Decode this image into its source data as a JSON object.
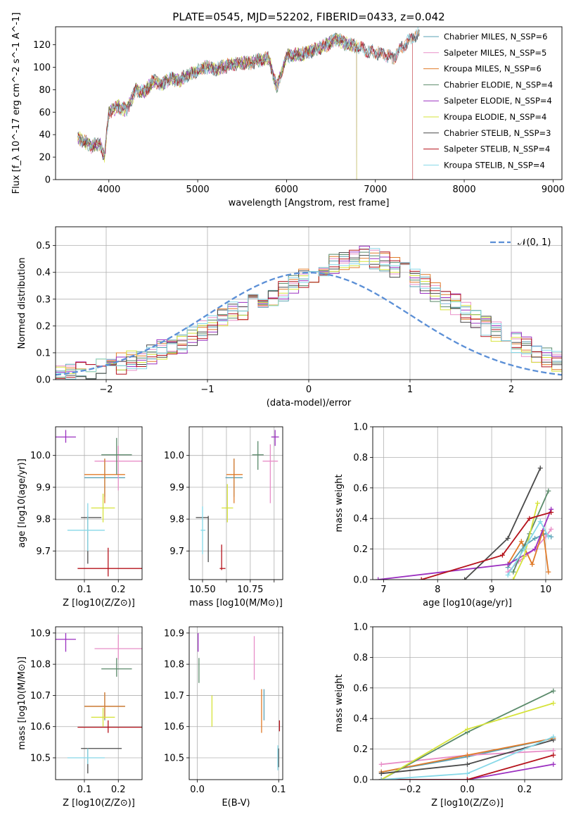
{
  "figure_title": "PLATE=0545, MJD=52202, FIBERID=0433, z=0.042",
  "chart_data": [
    {
      "id": "spectrum",
      "type": "line",
      "xlabel": "wavelength [Angstrom, rest frame]",
      "ylabel": "Flux [f_λ 10^-17 erg cm^-2 s^-1 A^-1]",
      "xlim": [
        3400,
        9100
      ],
      "ylim": [
        0,
        136
      ],
      "xticks": [
        4000,
        5000,
        6000,
        7000,
        8000,
        9000
      ],
      "yticks": [
        0,
        20,
        40,
        60,
        80,
        100,
        120
      ],
      "grid": false,
      "legend_position": "right",
      "legend": [
        {
          "label": "Chabrier MILES, N_SSP=6",
          "color": "#5aa0b4"
        },
        {
          "label": "Salpeter MILES, N_SSP=5",
          "color": "#e88fc8"
        },
        {
          "label": "Kroupa MILES, N_SSP=6",
          "color": "#e07b2a"
        },
        {
          "label": "Chabrier ELODIE, N_SSP=4",
          "color": "#5a8a6a"
        },
        {
          "label": "Salpeter ELODIE, N_SSP=4",
          "color": "#9b30c0"
        },
        {
          "label": "Kroupa ELODIE, N_SSP=4",
          "color": "#d6e33a"
        },
        {
          "label": "Chabrier STELIB, N_SSP=3",
          "color": "#4a4a4a"
        },
        {
          "label": "Salpeter STELIB, N_SSP=4",
          "color": "#b5121b"
        },
        {
          "label": "Kroupa STELIB, N_SSP=4",
          "color": "#86d8e8"
        }
      ],
      "spectrum_anchor_points": {
        "wavelength": [
          3650,
          3700,
          3800,
          3900,
          3950,
          4000,
          4100,
          4200,
          4300,
          4400,
          4500,
          4600,
          4700,
          4800,
          4860,
          4950,
          5100,
          5200,
          5400,
          5600,
          5800,
          5890,
          6000,
          6200,
          6400,
          6560,
          6700,
          6800,
          6900,
          7000,
          7100,
          7200,
          7300,
          7400,
          7500
        ],
        "flux": [
          38,
          35,
          30,
          32,
          20,
          60,
          65,
          62,
          80,
          78,
          88,
          85,
          90,
          88,
          92,
          95,
          100,
          98,
          103,
          104,
          108,
          82,
          110,
          112,
          118,
          125,
          120,
          118,
          115,
          113,
          112,
          108,
          118,
          125,
          130
        ]
      }
    },
    {
      "id": "residuals",
      "type": "histogram",
      "xlabel": "(data-model)/error",
      "ylabel": "Normed distribution",
      "xlim": [
        -2.5,
        2.5
      ],
      "ylim": [
        0,
        0.57
      ],
      "xticks": [
        -2,
        -1,
        0,
        1,
        2
      ],
      "yticks": [
        0.0,
        0.1,
        0.2,
        0.3,
        0.4,
        0.5
      ],
      "grid": true,
      "legend_label": "𝒩(0, 1)",
      "legend_position": "top-right",
      "reference_curve": {
        "name": "𝒩(0, 1)",
        "mean": 0,
        "sigma": 1,
        "color": "#5b8fd6"
      },
      "bin_edges_start": -2.5,
      "bin_width": 0.1,
      "base_histogram": [
        0.02,
        0.025,
        0.03,
        0.035,
        0.045,
        0.055,
        0.06,
        0.07,
        0.08,
        0.09,
        0.11,
        0.12,
        0.13,
        0.16,
        0.18,
        0.2,
        0.23,
        0.25,
        0.26,
        0.28,
        0.3,
        0.31,
        0.33,
        0.36,
        0.38,
        0.4,
        0.41,
        0.43,
        0.44,
        0.45,
        0.46,
        0.45,
        0.44,
        0.42,
        0.4,
        0.38,
        0.36,
        0.33,
        0.3,
        0.28,
        0.25,
        0.22,
        0.2,
        0.18,
        0.16,
        0.14,
        0.12,
        0.1,
        0.08,
        0.07
      ]
    },
    {
      "id": "age_vs_Z",
      "type": "scatter",
      "xlabel": "Z [log10(Z/Z⊙)]",
      "ylabel": "age  [log10(age/yr)]",
      "xlim": [
        0.015,
        0.27
      ],
      "ylim": [
        9.61,
        10.09
      ],
      "xticks": [
        0.1,
        0.2
      ],
      "yticks": [
        9.7,
        9.8,
        9.9,
        10.0
      ],
      "grid": true,
      "points": [
        {
          "color": "#5aa0b4",
          "x": 0.16,
          "y": 9.93,
          "xerr": [
            0.1,
            0.22
          ],
          "yerr": [
            9.87,
            9.99
          ]
        },
        {
          "color": "#e88fc8",
          "x": 0.2,
          "y": 9.982,
          "xerr": [
            0.13,
            0.27
          ],
          "yerr": [
            9.89,
            10.03
          ]
        },
        {
          "color": "#e07b2a",
          "x": 0.16,
          "y": 9.94,
          "xerr": [
            0.1,
            0.22
          ],
          "yerr": [
            9.85,
            9.99
          ]
        },
        {
          "color": "#5a8a6a",
          "x": 0.195,
          "y": 10.002,
          "xerr": [
            0.15,
            0.24
          ],
          "yerr": [
            9.94,
            10.055
          ]
        },
        {
          "color": "#9b30c0",
          "x": 0.045,
          "y": 10.058,
          "xerr": [
            0.015,
            0.075
          ],
          "yerr": [
            10.04,
            10.08
          ]
        },
        {
          "color": "#d6e33a",
          "x": 0.155,
          "y": 9.835,
          "xerr": [
            0.12,
            0.19
          ],
          "yerr": [
            9.79,
            9.88
          ]
        },
        {
          "color": "#4a4a4a",
          "x": 0.11,
          "y": 9.805,
          "xerr": [
            0.09,
            0.15
          ],
          "yerr": [
            9.66,
            9.81
          ]
        },
        {
          "color": "#b5121b",
          "x": 0.17,
          "y": 9.645,
          "xerr": [
            0.08,
            0.275
          ],
          "yerr": [
            9.62,
            9.71
          ]
        },
        {
          "color": "#86d8e8",
          "x": 0.11,
          "y": 9.765,
          "xerr": [
            0.05,
            0.16
          ],
          "yerr": [
            9.7,
            9.85
          ]
        }
      ]
    },
    {
      "id": "age_vs_mass",
      "type": "scatter",
      "xlabel": "mass [log10(M/M⊙)]",
      "ylabel": "",
      "xlim": [
        10.43,
        10.92
      ],
      "ylim": [
        9.61,
        10.09
      ],
      "xticks": [
        10.5,
        10.625,
        10.75,
        10.875
      ],
      "ytick_labels": [
        "9.7",
        "9.8",
        "9.9",
        "10.0"
      ],
      "xtick_labels": [
        "10.50",
        "",
        "10.75",
        ""
      ],
      "xtick_marks": [
        10.5,
        10.625,
        10.75,
        10.875
      ],
      "yticks": [
        9.7,
        9.8,
        9.9,
        10.0
      ],
      "grid": true,
      "points": [
        {
          "color": "#5aa0b4",
          "x": 10.665,
          "y": 9.93,
          "xerr": [
            10.62,
            10.71
          ],
          "yerr": [
            9.87,
            9.99
          ]
        },
        {
          "color": "#e88fc8",
          "x": 10.855,
          "y": 9.982,
          "xerr": [
            10.815,
            10.895
          ],
          "yerr": [
            9.85,
            10.035
          ]
        },
        {
          "color": "#e07b2a",
          "x": 10.665,
          "y": 9.94,
          "xerr": [
            10.625,
            10.71
          ],
          "yerr": [
            9.85,
            9.99
          ]
        },
        {
          "color": "#5a8a6a",
          "x": 10.79,
          "y": 10.002,
          "xerr": [
            10.76,
            10.82
          ],
          "yerr": [
            9.955,
            10.045
          ]
        },
        {
          "color": "#9b30c0",
          "x": 10.88,
          "y": 10.058,
          "xerr": [
            10.86,
            10.9
          ],
          "yerr": [
            10.03,
            10.08
          ]
        },
        {
          "color": "#d6e33a",
          "x": 10.63,
          "y": 9.835,
          "xerr": [
            10.6,
            10.66
          ],
          "yerr": [
            9.79,
            9.91
          ]
        },
        {
          "color": "#4a4a4a",
          "x": 10.53,
          "y": 9.805,
          "xerr": [
            10.465,
            10.53
          ],
          "yerr": [
            9.665,
            9.81
          ]
        },
        {
          "color": "#b5121b",
          "x": 10.6,
          "y": 9.645,
          "xerr": [
            10.59,
            10.62
          ],
          "yerr": [
            9.64,
            9.72
          ]
        },
        {
          "color": "#86d8e8",
          "x": 10.5,
          "y": 9.765,
          "xerr": [
            10.49,
            10.515
          ],
          "yerr": [
            9.69,
            9.84
          ]
        }
      ]
    },
    {
      "id": "massweight_vs_age",
      "type": "line",
      "xlabel": "age  [log10(age/yr)]",
      "ylabel": "mass weight",
      "xlim": [
        6.8,
        10.3
      ],
      "ylim": [
        0,
        1.0
      ],
      "xticks": [
        7,
        8,
        9,
        10
      ],
      "yticks": [
        0.0,
        0.2,
        0.4,
        0.6,
        0.8,
        1.0
      ],
      "grid": true,
      "series": [
        {
          "color": "#5aa0b4",
          "x": [
            9.3,
            9.6,
            9.8,
            10.0,
            10.1
          ],
          "y": [
            0.08,
            0.22,
            0.27,
            0.3,
            0.28
          ]
        },
        {
          "color": "#e88fc8",
          "x": [
            9.3,
            9.5,
            9.8,
            10.0,
            10.1
          ],
          "y": [
            0.05,
            0.12,
            0.2,
            0.28,
            0.33
          ]
        },
        {
          "color": "#e07b2a",
          "x": [
            9.3,
            9.55,
            9.75,
            9.95,
            10.05
          ],
          "y": [
            0.1,
            0.25,
            0.1,
            0.32,
            0.05
          ]
        },
        {
          "color": "#5a8a6a",
          "x": [
            9.4,
            9.7,
            10.05
          ],
          "y": [
            0.05,
            0.3,
            0.58
          ]
        },
        {
          "color": "#9b30c0",
          "x": [
            6.9,
            9.3,
            9.8,
            10.1
          ],
          "y": [
            0.0,
            0.1,
            0.2,
            0.46
          ]
        },
        {
          "color": "#d6e33a",
          "x": [
            9.4,
            9.6,
            9.85
          ],
          "y": [
            0.0,
            0.15,
            0.5
          ]
        },
        {
          "color": "#4a4a4a",
          "x": [
            8.5,
            9.3,
            9.9
          ],
          "y": [
            0.0,
            0.27,
            0.73
          ]
        },
        {
          "color": "#b5121b",
          "x": [
            7.7,
            9.2,
            9.7,
            10.1
          ],
          "y": [
            0.0,
            0.16,
            0.4,
            0.44
          ]
        },
        {
          "color": "#86d8e8",
          "x": [
            9.3,
            9.6,
            9.9,
            10.05
          ],
          "y": [
            0.03,
            0.2,
            0.38,
            0.28
          ]
        }
      ]
    },
    {
      "id": "mass_vs_Z",
      "type": "scatter",
      "xlabel": "Z [log10(Z/Z⊙)]",
      "ylabel": "mass [log10(M/M⊙)]",
      "xlim": [
        0.015,
        0.27
      ],
      "ylim": [
        10.43,
        10.92
      ],
      "xticks": [
        0.1,
        0.2
      ],
      "yticks": [
        10.5,
        10.6,
        10.7,
        10.8,
        10.9
      ],
      "grid": true,
      "points": [
        {
          "color": "#5aa0b4",
          "x": 0.16,
          "y": 10.665,
          "xerr": [
            0.1,
            0.22
          ],
          "yerr": [
            10.62,
            10.71
          ]
        },
        {
          "color": "#e88fc8",
          "x": 0.2,
          "y": 10.85,
          "xerr": [
            0.13,
            0.27
          ],
          "yerr": [
            10.815,
            10.895
          ]
        },
        {
          "color": "#e07b2a",
          "x": 0.16,
          "y": 10.665,
          "xerr": [
            0.1,
            0.22
          ],
          "yerr": [
            10.625,
            10.71
          ]
        },
        {
          "color": "#5a8a6a",
          "x": 0.195,
          "y": 10.785,
          "xerr": [
            0.15,
            0.24
          ],
          "yerr": [
            10.76,
            10.82
          ]
        },
        {
          "color": "#9b30c0",
          "x": 0.045,
          "y": 10.88,
          "xerr": [
            0.015,
            0.075
          ],
          "yerr": [
            10.84,
            10.9
          ]
        },
        {
          "color": "#d6e33a",
          "x": 0.155,
          "y": 10.63,
          "xerr": [
            0.12,
            0.19
          ],
          "yerr": [
            10.6,
            10.66
          ]
        },
        {
          "color": "#4a4a4a",
          "x": 0.11,
          "y": 10.53,
          "xerr": [
            0.09,
            0.21
          ],
          "yerr": [
            10.45,
            10.53
          ]
        },
        {
          "color": "#b5121b",
          "x": 0.17,
          "y": 10.598,
          "xerr": [
            0.08,
            0.275
          ],
          "yerr": [
            10.58,
            10.62
          ]
        },
        {
          "color": "#86d8e8",
          "x": 0.11,
          "y": 10.5,
          "xerr": [
            0.05,
            0.16
          ],
          "yerr": [
            10.48,
            10.53
          ]
        }
      ]
    },
    {
      "id": "mass_vs_ebv",
      "type": "scatter",
      "xlabel": "E(B-V)",
      "ylabel": "",
      "xlim": [
        -0.01,
        0.105
      ],
      "ylim": [
        10.43,
        10.92
      ],
      "xticks": [
        0.0,
        0.1
      ],
      "yticks": [
        10.5,
        10.6,
        10.7,
        10.8,
        10.9
      ],
      "grid": true,
      "points": [
        {
          "color": "#5aa0b4",
          "x": 0.082,
          "y": 10.665,
          "yerr": [
            10.62,
            10.72
          ]
        },
        {
          "color": "#e88fc8",
          "x": 0.07,
          "y": 10.82,
          "yerr": [
            10.75,
            10.89
          ]
        },
        {
          "color": "#e07b2a",
          "x": 0.079,
          "y": 10.65,
          "yerr": [
            10.58,
            10.72
          ]
        },
        {
          "color": "#5a8a6a",
          "x": 0.002,
          "y": 10.78,
          "yerr": [
            10.74,
            10.82
          ]
        },
        {
          "color": "#9b30c0",
          "x": 0.001,
          "y": 10.87,
          "yerr": [
            10.84,
            10.9
          ]
        },
        {
          "color": "#d6e33a",
          "x": 0.018,
          "y": 10.65,
          "yerr": [
            10.6,
            10.7
          ]
        },
        {
          "color": "#4a4a4a",
          "x": 0.1,
          "y": 10.5,
          "yerr": [
            10.47,
            10.53
          ]
        },
        {
          "color": "#b5121b",
          "x": 0.101,
          "y": 10.6,
          "yerr": [
            10.585,
            10.62
          ]
        },
        {
          "color": "#86d8e8",
          "x": 0.099,
          "y": 10.5,
          "yerr": [
            10.46,
            10.54
          ]
        }
      ]
    },
    {
      "id": "massweight_vs_Z",
      "type": "line",
      "xlabel": "Z [log10(Z/Z⊙)]",
      "ylabel": "mass weight",
      "xlim": [
        -0.33,
        0.33
      ],
      "ylim": [
        0,
        1.0
      ],
      "xticks": [
        -0.2,
        0.0,
        0.2
      ],
      "yticks": [
        0.0,
        0.2,
        0.4,
        0.6,
        0.8,
        1.0
      ],
      "grid": true,
      "series": [
        {
          "color": "#5aa0b4",
          "x": [
            -0.3,
            0.0,
            0.3
          ],
          "y": [
            0.05,
            0.15,
            0.27
          ]
        },
        {
          "color": "#e88fc8",
          "x": [
            -0.3,
            0.0,
            0.3
          ],
          "y": [
            0.1,
            0.16,
            0.19
          ]
        },
        {
          "color": "#e07b2a",
          "x": [
            -0.3,
            0.0,
            0.3
          ],
          "y": [
            0.05,
            0.16,
            0.27
          ]
        },
        {
          "color": "#5a8a6a",
          "x": [
            -0.3,
            0.0,
            0.3
          ],
          "y": [
            0.0,
            0.31,
            0.58
          ]
        },
        {
          "color": "#9b30c0",
          "x": [
            -0.3,
            0.0,
            0.3
          ],
          "y": [
            0.0,
            0.0,
            0.1
          ]
        },
        {
          "color": "#d6e33a",
          "x": [
            -0.3,
            0.0,
            0.3
          ],
          "y": [
            0.0,
            0.33,
            0.5
          ]
        },
        {
          "color": "#4a4a4a",
          "x": [
            -0.3,
            0.0,
            0.3
          ],
          "y": [
            0.04,
            0.1,
            0.26
          ]
        },
        {
          "color": "#b5121b",
          "x": [
            -0.3,
            0.0,
            0.3
          ],
          "y": [
            0.0,
            0.0,
            0.16
          ]
        },
        {
          "color": "#86d8e8",
          "x": [
            -0.3,
            0.0,
            0.3
          ],
          "y": [
            0.0,
            0.04,
            0.28
          ]
        }
      ]
    }
  ]
}
